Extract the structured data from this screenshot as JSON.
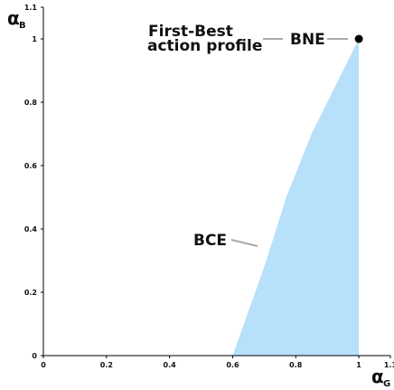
{
  "chart_data": {
    "type": "area",
    "xlim": [
      0,
      1.1
    ],
    "ylim": [
      0,
      1.1
    ],
    "x_ticks": [
      "0",
      "0.2",
      "0.4",
      "0.6",
      "0.8",
      "1",
      "1.1"
    ],
    "y_ticks": [
      "0",
      "0.2",
      "0.4",
      "0.6",
      "0.8",
      "1",
      "1.1"
    ],
    "x_label": {
      "symbol": "α",
      "subscript": "G"
    },
    "y_label": {
      "symbol": "α",
      "subscript": "B"
    },
    "fill_color": "#b7e0fb",
    "point_color": "#000000",
    "region": {
      "name": "BCE",
      "boundary": [
        {
          "x": 0.6,
          "y": 0
        },
        {
          "x": 0.65,
          "y": 0.14
        },
        {
          "x": 0.7,
          "y": 0.28
        },
        {
          "x": 0.77,
          "y": 0.5
        },
        {
          "x": 0.85,
          "y": 0.7
        },
        {
          "x": 0.93,
          "y": 0.86
        },
        {
          "x": 1.0,
          "y": 1.0
        },
        {
          "x": 1.0,
          "y": 0
        }
      ]
    },
    "points": [
      {
        "name": "BNE",
        "x": 1.0,
        "y": 1.0
      }
    ],
    "annotations": {
      "first_best_line1": "First-Best",
      "first_best_line2": "action profile",
      "bne": "BNE",
      "bce": "BCE"
    }
  }
}
